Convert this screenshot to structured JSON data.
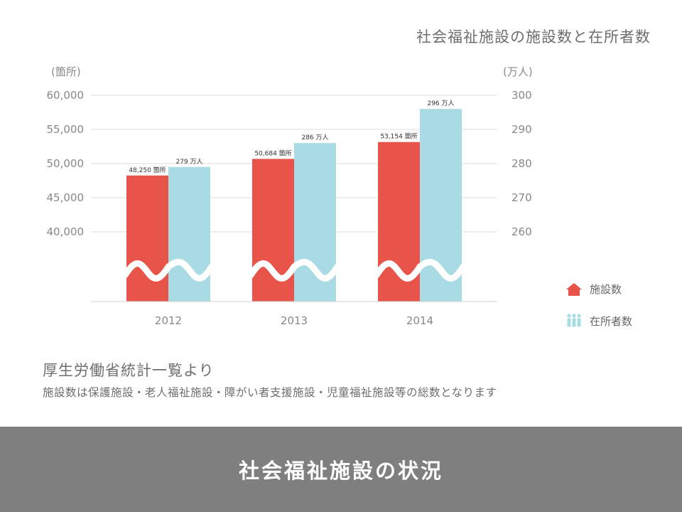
{
  "chart_data": {
    "type": "bar",
    "title": "社会福祉施設の施設数と在所者数",
    "categories": [
      "2012",
      "2013",
      "2014"
    ],
    "y_left": {
      "unit_label": "(箇所)",
      "ticks": [
        "60,000",
        "55,000",
        "50,000",
        "45,000",
        "40,000"
      ],
      "tick_values": [
        60000,
        55000,
        50000,
        45000,
        40000
      ],
      "range": [
        40000,
        60000
      ]
    },
    "y_right": {
      "unit_label": "(万人)",
      "ticks": [
        "300",
        "290",
        "280",
        "270",
        "260"
      ],
      "tick_values": [
        300,
        290,
        280,
        270,
        260
      ],
      "range": [
        260,
        300
      ]
    },
    "axis_break": true,
    "grid": true,
    "series": [
      {
        "name": "施設数",
        "axis": "left",
        "color": "#e8534a",
        "values": [
          48250,
          50684,
          53154
        ],
        "labels": [
          "48,250 箇所",
          "50,684 箇所",
          "53,154 箇所"
        ],
        "legend_icon": "house-icon"
      },
      {
        "name": "在所者数",
        "axis": "right",
        "color": "#a8dbe3",
        "values": [
          279,
          286,
          296
        ],
        "labels": [
          "279 万人",
          "286 万人",
          "296 万人"
        ],
        "legend_icon": "people-icon"
      }
    ],
    "legend_placement": "right"
  },
  "source": "厚生労働省統計一覧より",
  "note": "施設数は保護施設・老人福祉施設・障がい者支援施設・児童福祉施設等の総数となります",
  "footer": {
    "title": "社会福祉施設の状況"
  }
}
